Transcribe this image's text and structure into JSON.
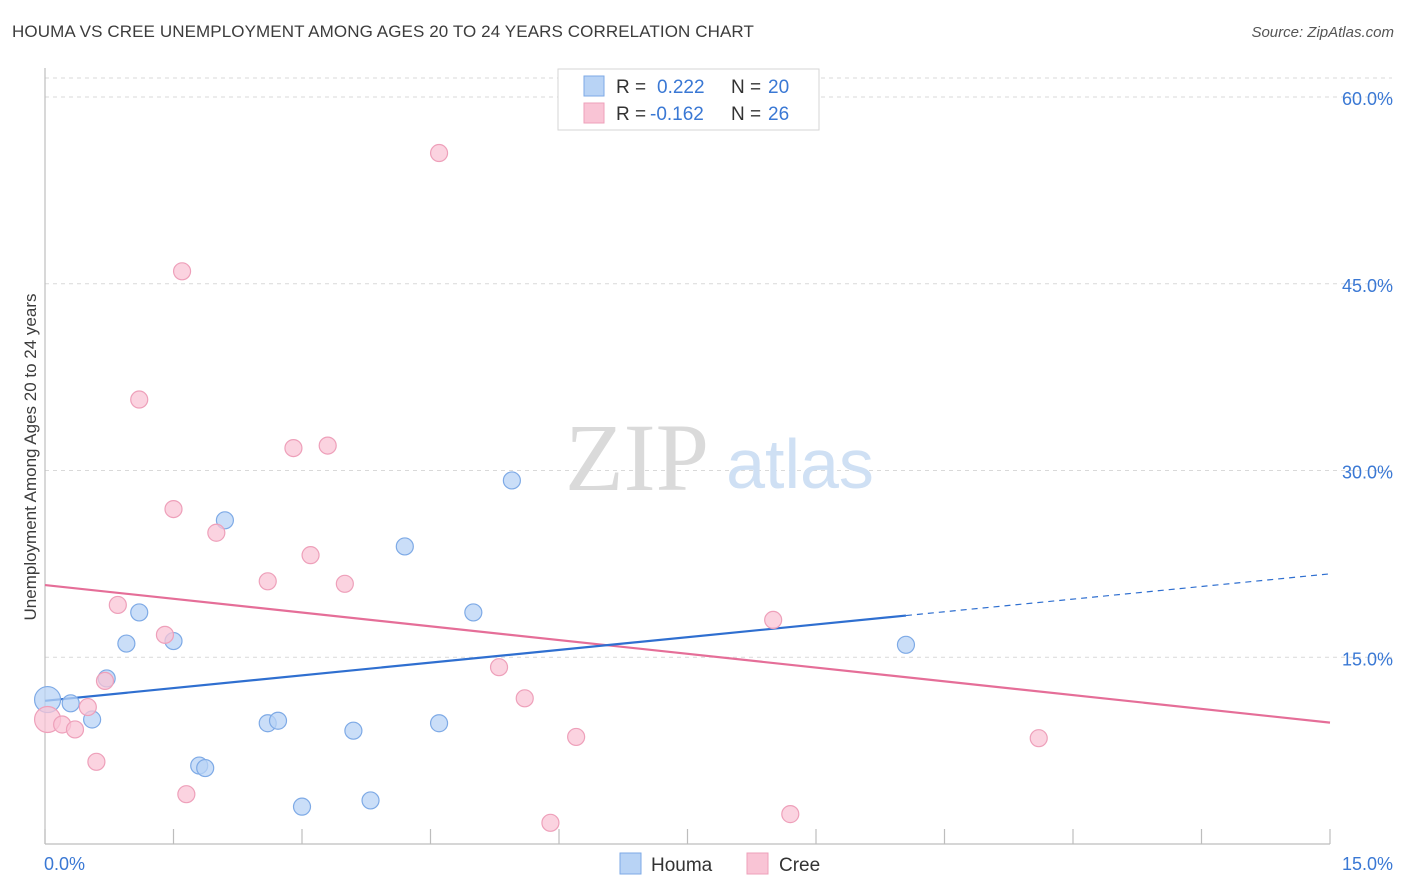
{
  "title": "HOUMA VS CREE UNEMPLOYMENT AMONG AGES 20 TO 24 YEARS CORRELATION CHART",
  "source": "Source: ZipAtlas.com",
  "watermark": {
    "zip": "ZIP",
    "atlas": "atlas"
  },
  "legend_stats": [
    {
      "r_label": "R =",
      "r_value": "0.222",
      "n_label": "N =",
      "n_value": "20"
    },
    {
      "r_label": "R =",
      "r_value": "-0.162",
      "n_label": "N =",
      "n_value": "26"
    }
  ],
  "bottom_legend": [
    "Houma",
    "Cree"
  ],
  "colors": {
    "houma_fill": "#b8d3f5",
    "houma_stroke": "#7eaae6",
    "houma_line": "#2f6fd0",
    "cree_fill": "#f9c4d5",
    "cree_stroke": "#eea0ba",
    "cree_line": "#e56e98",
    "axis_text": "#3a78d4",
    "grid": "#d9d9d9"
  },
  "chart_data": {
    "type": "scatter",
    "xlabel": "",
    "ylabel": "Unemployment Among Ages 20 to 24 years",
    "xlim": [
      0,
      15
    ],
    "ylim": [
      0,
      60
    ],
    "x_tick_labels": [
      {
        "x": 0,
        "label": "0.0%"
      },
      {
        "x": 15,
        "label": "15.0%"
      }
    ],
    "y_ticks": [
      {
        "y": 15,
        "label": "15.0%"
      },
      {
        "y": 30,
        "label": "30.0%"
      },
      {
        "y": 45,
        "label": "45.0%"
      },
      {
        "y": 60,
        "label": "60.0%"
      }
    ],
    "series": [
      {
        "name": "Houma",
        "r": 0.222,
        "n": 20,
        "points": [
          {
            "x": 0.03,
            "y": 11.6,
            "big": true
          },
          {
            "x": 0.3,
            "y": 11.3
          },
          {
            "x": 0.55,
            "y": 10.0
          },
          {
            "x": 0.72,
            "y": 13.3
          },
          {
            "x": 0.95,
            "y": 16.1
          },
          {
            "x": 1.1,
            "y": 18.6
          },
          {
            "x": 1.5,
            "y": 16.3
          },
          {
            "x": 1.8,
            "y": 6.3
          },
          {
            "x": 1.87,
            "y": 6.1
          },
          {
            "x": 2.1,
            "y": 26.0
          },
          {
            "x": 2.6,
            "y": 9.7
          },
          {
            "x": 2.72,
            "y": 9.9
          },
          {
            "x": 3.0,
            "y": 3.0
          },
          {
            "x": 3.6,
            "y": 9.1
          },
          {
            "x": 3.8,
            "y": 3.5
          },
          {
            "x": 4.2,
            "y": 23.9
          },
          {
            "x": 4.6,
            "y": 9.7
          },
          {
            "x": 5.0,
            "y": 18.6
          },
          {
            "x": 5.45,
            "y": 29.2
          },
          {
            "x": 10.05,
            "y": 16.0
          }
        ],
        "trend": {
          "x0": 0,
          "y0": 11.5,
          "x1": 10.05,
          "y1": 18.35,
          "dash_x1": 15,
          "dash_y1": 21.7
        }
      },
      {
        "name": "Cree",
        "r": -0.162,
        "n": 26,
        "points": [
          {
            "x": 0.03,
            "y": 10.0,
            "big": true
          },
          {
            "x": 0.2,
            "y": 9.6
          },
          {
            "x": 0.35,
            "y": 9.2
          },
          {
            "x": 0.5,
            "y": 11.0
          },
          {
            "x": 0.6,
            "y": 6.6
          },
          {
            "x": 0.7,
            "y": 13.1
          },
          {
            "x": 0.85,
            "y": 19.2
          },
          {
            "x": 1.1,
            "y": 35.7
          },
          {
            "x": 1.4,
            "y": 16.8
          },
          {
            "x": 1.6,
            "y": 46.0
          },
          {
            "x": 1.65,
            "y": 4.0
          },
          {
            "x": 1.5,
            "y": 26.9
          },
          {
            "x": 2.0,
            "y": 25.0
          },
          {
            "x": 2.6,
            "y": 21.1
          },
          {
            "x": 2.9,
            "y": 31.8
          },
          {
            "x": 3.1,
            "y": 23.2
          },
          {
            "x": 3.3,
            "y": 32.0
          },
          {
            "x": 3.5,
            "y": 20.9
          },
          {
            "x": 4.6,
            "y": 55.5
          },
          {
            "x": 5.3,
            "y": 14.2
          },
          {
            "x": 5.6,
            "y": 11.7
          },
          {
            "x": 5.9,
            "y": 1.7
          },
          {
            "x": 6.2,
            "y": 8.6
          },
          {
            "x": 8.5,
            "y": 18.0
          },
          {
            "x": 8.7,
            "y": 2.4
          },
          {
            "x": 11.6,
            "y": 8.5
          }
        ],
        "trend": {
          "x0": 0,
          "y0": 20.8,
          "x1": 15,
          "y1": 9.75
        }
      }
    ]
  }
}
